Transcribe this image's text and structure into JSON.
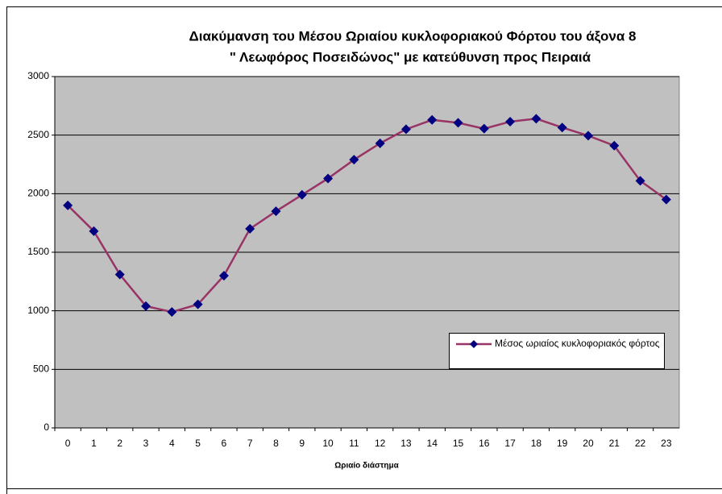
{
  "chart_data": {
    "type": "line",
    "title": [
      "Διακύμανση του Μέσου Ωριαίου κυκλοφοριακού Φόρτου του άξονα 8",
      "\" Λεωφόρος Ποσειδώνος\" με κατεύθυνση προς Πειραιά"
    ],
    "x_label": "Ωριαίο διάστημα",
    "categories": [
      "0",
      "1",
      "2",
      "3",
      "4",
      "5",
      "6",
      "7",
      "8",
      "9",
      "10",
      "11",
      "12",
      "13",
      "14",
      "15",
      "16",
      "17",
      "18",
      "19",
      "20",
      "21",
      "22",
      "23"
    ],
    "series": [
      {
        "name": "Μέσος ωριαίος κυκλοφοριακός φόρτος",
        "color": "#993366",
        "marker_color": "#000080",
        "values": [
          1900,
          1680,
          1310,
          1040,
          990,
          1055,
          1300,
          1700,
          1850,
          1990,
          2130,
          2290,
          2430,
          2550,
          2630,
          2605,
          2555,
          2615,
          2640,
          2565,
          2495,
          2410,
          2110,
          1950
        ]
      }
    ],
    "ylim": [
      0,
      3000
    ],
    "yticks": [
      0,
      500,
      1000,
      1500,
      2000,
      2500,
      3000
    ],
    "grid": true,
    "plot_background": "#c0c0c0"
  }
}
